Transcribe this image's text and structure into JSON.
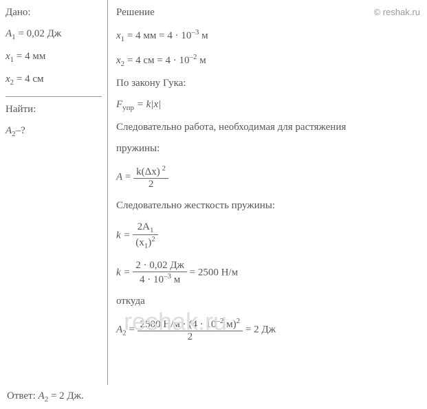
{
  "watermark": {
    "top": "© reshak.ru",
    "big": "reshak.ru"
  },
  "given": {
    "label": "Дано:",
    "a1_var": "A",
    "a1_sub": "1",
    "a1_eq": " = 0,02 Дж",
    "x1_var": "x",
    "x1_sub": "1",
    "x1_eq": " = 4 мм",
    "x2_var": "x",
    "x2_sub": "2",
    "x2_eq": " = 4 см",
    "find_label": "Найти:",
    "a2_var": "A",
    "a2_sub": "2",
    "a2_q": "–?"
  },
  "solution": {
    "label": "Решение",
    "conv1_v": "x",
    "conv1_s": "1",
    "conv1_t": " = 4 мм = 4 · 10",
    "conv1_p": "–3",
    "conv1_u": " м",
    "conv2_v": "x",
    "conv2_s": "2",
    "conv2_t": " = 4 см = 4 · 10",
    "conv2_p": "–2",
    "conv2_u": " м",
    "hooke_text": "По закону Гука:",
    "f_var": "F",
    "f_sub": "упр",
    "f_eq": " = k|x|",
    "work_text1": "Следовательно работа, необходимая для растяжения",
    "work_text2": "пружины:",
    "a_var": "A",
    "a_eq": " = ",
    "a_num": "k(Δx)",
    "a_num_p": " 2",
    "a_den": "2",
    "k_text": "Следовательно жесткость пружины:",
    "k_eq": "k = ",
    "k_num": "2A",
    "k_num_s": "1",
    "k_den_l": "(x",
    "k_den_s": "1",
    "k_den_r": ")",
    "k_den_p": "2",
    "kv_eq": "k = ",
    "kv_num": "2 · 0,02 Дж",
    "kv_den_l": "4 · 10",
    "kv_den_p": "–3",
    "kv_den_r": " м",
    "kv_res": " = 2500 Н/м",
    "whence": "откуда",
    "a2f_var": "A",
    "a2f_sub": "2",
    "a2f_eq": " = ",
    "a2f_num_l": "2500 Н/м · (4 · 10",
    "a2f_num_p": "–2",
    "a2f_num_r": " м)",
    "a2f_num_p2": "2",
    "a2f_den": "2",
    "a2f_res": " = 2 Дж"
  },
  "answer": {
    "label": "Ответ: ",
    "var": "A",
    "sub": "2",
    "eq": " = 2 Дж."
  }
}
